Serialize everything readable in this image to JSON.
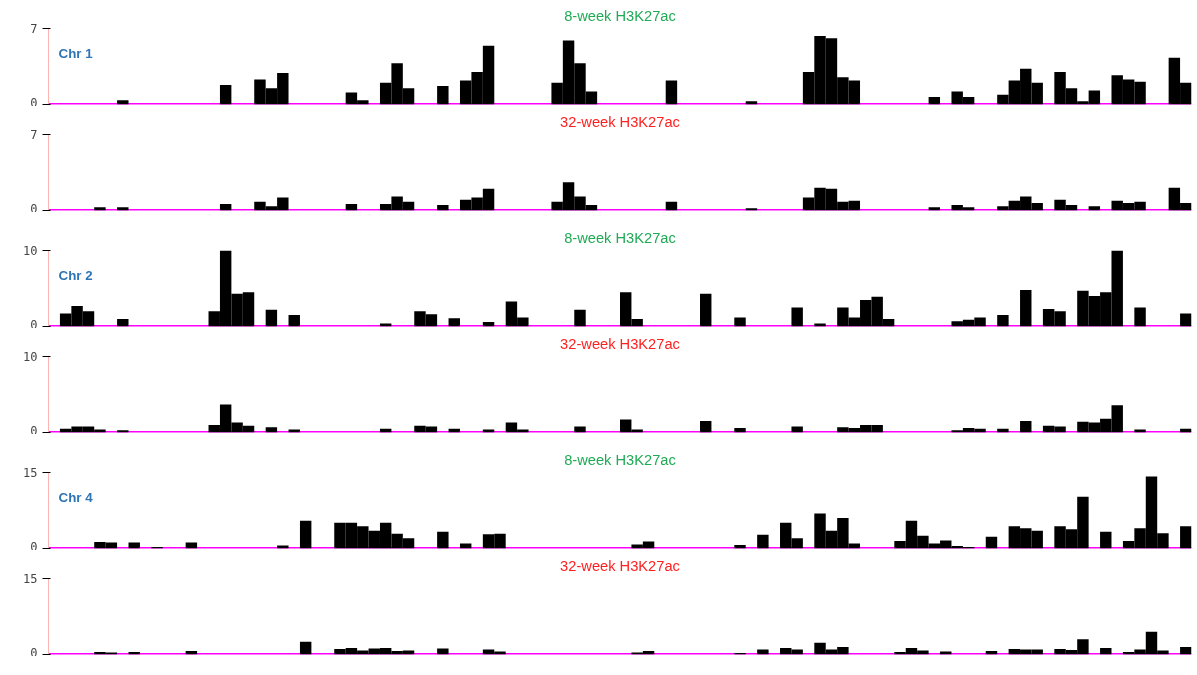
{
  "chart_data": [
    {
      "type": "bar",
      "title": "8-week H3K27ac",
      "annotations": [
        "Chr 1"
      ],
      "color": "#000000",
      "ylim": [
        0,
        7
      ],
      "yticks": [
        0,
        7
      ],
      "ref_lines": [
        {
          "axis": "y",
          "value": 0,
          "color": "#ff00ff"
        }
      ],
      "categories": [
        null,
        null,
        null,
        null,
        null,
        null,
        null,
        null,
        null,
        null,
        null,
        null,
        null,
        null,
        null,
        null,
        null,
        null,
        null,
        null,
        null,
        null,
        null,
        null,
        null,
        null,
        null,
        null,
        null,
        null,
        null,
        null,
        null,
        null,
        null,
        null,
        null,
        null,
        null,
        null,
        null,
        null,
        null,
        null,
        null,
        null,
        null,
        null,
        null,
        null,
        null,
        null,
        null,
        null,
        null,
        null,
        null,
        null,
        null,
        null,
        null,
        null,
        null,
        null,
        null,
        null,
        null,
        null,
        null,
        null,
        null,
        null,
        null,
        null,
        null,
        null,
        null,
        null,
        null,
        null,
        null,
        null,
        null,
        null,
        null,
        null,
        null,
        null,
        null,
        null,
        null,
        null,
        null,
        null,
        null,
        null,
        null,
        null,
        null,
        null
      ],
      "values": [
        0,
        0,
        0,
        0,
        0,
        0,
        0.4,
        0,
        0,
        0,
        0,
        0,
        0,
        0,
        0,
        1.8,
        0,
        0,
        2.3,
        1.5,
        2.9,
        0,
        0,
        0,
        0,
        0,
        1.1,
        0.4,
        0,
        2.0,
        3.8,
        1.5,
        0,
        0,
        1.7,
        0,
        2.2,
        3.0,
        5.4,
        0,
        0,
        0,
        0,
        0,
        2.0,
        5.9,
        3.8,
        1.2,
        0,
        0,
        0,
        0,
        0,
        0,
        2.2,
        0,
        0,
        0,
        0,
        0,
        0,
        0.3,
        0,
        0,
        0,
        0,
        3.0,
        6.3,
        6.1,
        2.5,
        2.2,
        0,
        0,
        0,
        0,
        0,
        0,
        0.7,
        0,
        1.2,
        0.7,
        0,
        0,
        0.9,
        2.2,
        3.3,
        2.0,
        0,
        3.0,
        1.5,
        0.3,
        1.3,
        0,
        2.7,
        2.3,
        2.1,
        0,
        0,
        4.3,
        2.0
      ]
    },
    {
      "type": "bar",
      "title": "32-week H3K27ac",
      "color": "#000000",
      "ylim": [
        0,
        7
      ],
      "yticks": [
        0,
        7
      ],
      "ref_lines": [
        {
          "axis": "y",
          "value": 0,
          "color": "#ff00ff"
        }
      ],
      "categories": [
        null,
        null,
        null,
        null,
        null,
        null,
        null,
        null,
        null,
        null,
        null,
        null,
        null,
        null,
        null,
        null,
        null,
        null,
        null,
        null,
        null,
        null,
        null,
        null,
        null,
        null,
        null,
        null,
        null,
        null,
        null,
        null,
        null,
        null,
        null,
        null,
        null,
        null,
        null,
        null,
        null,
        null,
        null,
        null,
        null,
        null,
        null,
        null,
        null,
        null,
        null,
        null,
        null,
        null,
        null,
        null,
        null,
        null,
        null,
        null,
        null,
        null,
        null,
        null,
        null,
        null,
        null,
        null,
        null,
        null,
        null,
        null,
        null,
        null,
        null,
        null,
        null,
        null,
        null,
        null,
        null,
        null,
        null,
        null,
        null,
        null,
        null,
        null,
        null,
        null,
        null,
        null,
        null,
        null,
        null,
        null,
        null,
        null,
        null,
        null
      ],
      "values": [
        0,
        0,
        0,
        0,
        0.3,
        0,
        0.3,
        0,
        0,
        0,
        0,
        0,
        0,
        0,
        0,
        0.6,
        0,
        0,
        0.8,
        0.4,
        1.2,
        0,
        0,
        0,
        0,
        0,
        0.6,
        0,
        0,
        0.6,
        1.3,
        0.8,
        0,
        0,
        0.5,
        0,
        1.0,
        1.2,
        2.0,
        0,
        0,
        0,
        0,
        0,
        0.8,
        2.6,
        1.3,
        0.5,
        0,
        0,
        0,
        0,
        0,
        0,
        0.8,
        0,
        0,
        0,
        0,
        0,
        0,
        0.2,
        0,
        0,
        0,
        0,
        1.2,
        2.1,
        2.0,
        0.8,
        0.9,
        0,
        0,
        0,
        0,
        0,
        0,
        0.3,
        0,
        0.5,
        0.3,
        0,
        0,
        0.4,
        0.9,
        1.3,
        0.7,
        0,
        1.0,
        0.5,
        0,
        0.4,
        0,
        0.9,
        0.7,
        0.8,
        0,
        0,
        2.1,
        0.7
      ]
    },
    {
      "type": "bar",
      "title": "8-week H3K27ac",
      "annotations": [
        "Chr 2"
      ],
      "color": "#000000",
      "ylim": [
        0,
        10
      ],
      "yticks": [
        0,
        10
      ],
      "ref_lines": [
        {
          "axis": "y",
          "value": 0,
          "color": "#ff00ff"
        }
      ],
      "categories": [
        null,
        null,
        null,
        null,
        null,
        null,
        null,
        null,
        null,
        null,
        null,
        null,
        null,
        null,
        null,
        null,
        null,
        null,
        null,
        null,
        null,
        null,
        null,
        null,
        null,
        null,
        null,
        null,
        null,
        null,
        null,
        null,
        null,
        null,
        null,
        null,
        null,
        null,
        null,
        null,
        null,
        null,
        null,
        null,
        null,
        null,
        null,
        null,
        null,
        null,
        null,
        null,
        null,
        null,
        null,
        null,
        null,
        null,
        null,
        null,
        null,
        null,
        null,
        null,
        null,
        null,
        null,
        null,
        null,
        null,
        null,
        null,
        null,
        null,
        null,
        null,
        null,
        null,
        null,
        null,
        null,
        null,
        null,
        null,
        null,
        null,
        null,
        null,
        null,
        null,
        null,
        null,
        null,
        null,
        null,
        null,
        null,
        null,
        null,
        null
      ],
      "values": [
        0,
        1.7,
        2.7,
        2.0,
        0,
        0,
        1.0,
        0,
        0,
        0,
        0,
        0,
        0,
        0,
        2.0,
        10.0,
        4.3,
        4.5,
        0,
        2.2,
        0,
        1.5,
        0,
        0,
        0,
        0,
        0,
        0,
        0,
        0.4,
        0,
        0,
        2.0,
        1.6,
        0,
        1.1,
        0,
        0,
        0.6,
        0,
        3.3,
        1.2,
        0,
        0,
        0,
        0,
        2.2,
        0,
        0,
        0,
        4.5,
        1.0,
        0,
        0,
        0,
        0,
        0,
        4.3,
        0,
        0,
        1.2,
        0,
        0,
        0,
        0,
        2.5,
        0,
        0.4,
        0,
        2.5,
        1.2,
        3.5,
        3.9,
        1.0,
        0,
        0,
        0,
        0,
        0,
        0.7,
        0.9,
        1.2,
        0,
        1.5,
        0,
        4.8,
        0,
        2.3,
        2.0,
        0,
        4.7,
        4.0,
        4.5,
        10.0,
        0,
        2.5,
        0,
        0,
        0,
        1.7
      ]
    },
    {
      "type": "bar",
      "title": "32-week H3K27ac",
      "color": "#000000",
      "ylim": [
        0,
        10
      ],
      "yticks": [
        0,
        10
      ],
      "ref_lines": [
        {
          "axis": "y",
          "value": 0,
          "color": "#ff00ff"
        }
      ],
      "categories": [
        null,
        null,
        null,
        null,
        null,
        null,
        null,
        null,
        null,
        null,
        null,
        null,
        null,
        null,
        null,
        null,
        null,
        null,
        null,
        null,
        null,
        null,
        null,
        null,
        null,
        null,
        null,
        null,
        null,
        null,
        null,
        null,
        null,
        null,
        null,
        null,
        null,
        null,
        null,
        null,
        null,
        null,
        null,
        null,
        null,
        null,
        null,
        null,
        null,
        null,
        null,
        null,
        null,
        null,
        null,
        null,
        null,
        null,
        null,
        null,
        null,
        null,
        null,
        null,
        null,
        null,
        null,
        null,
        null,
        null,
        null,
        null,
        null,
        null,
        null,
        null,
        null,
        null,
        null,
        null,
        null,
        null,
        null,
        null,
        null,
        null,
        null,
        null,
        null,
        null,
        null,
        null,
        null,
        null,
        null,
        null,
        null,
        null,
        null,
        null
      ],
      "values": [
        0,
        0.5,
        0.8,
        0.8,
        0.4,
        0,
        0.3,
        0,
        0,
        0,
        0,
        0,
        0,
        0,
        1.0,
        3.7,
        1.3,
        0.9,
        0,
        0.7,
        0,
        0.4,
        0,
        0,
        0,
        0,
        0,
        0,
        0,
        0.5,
        0,
        0,
        0.9,
        0.8,
        0,
        0.5,
        0,
        0,
        0.4,
        0,
        1.3,
        0.4,
        0,
        0,
        0,
        0,
        0.8,
        0,
        0,
        0,
        1.7,
        0.4,
        0,
        0,
        0,
        0,
        0,
        1.5,
        0,
        0,
        0.6,
        0,
        0,
        0,
        0,
        0.8,
        0,
        0,
        0,
        0.7,
        0.6,
        1.0,
        1.0,
        0,
        0,
        0,
        0,
        0,
        0,
        0.3,
        0.6,
        0.5,
        0,
        0.5,
        0,
        1.5,
        0,
        0.9,
        0.8,
        0,
        1.4,
        1.3,
        1.8,
        3.6,
        0,
        0.4,
        0,
        0,
        0,
        0.5
      ]
    },
    {
      "type": "bar",
      "title": "8-week H3K27ac",
      "annotations": [
        "Chr 4"
      ],
      "color": "#000000",
      "ylim": [
        0,
        15
      ],
      "yticks": [
        0,
        15
      ],
      "ref_lines": [
        {
          "axis": "y",
          "value": 0,
          "color": "#ff00ff"
        }
      ],
      "categories": [
        null,
        null,
        null,
        null,
        null,
        null,
        null,
        null,
        null,
        null,
        null,
        null,
        null,
        null,
        null,
        null,
        null,
        null,
        null,
        null,
        null,
        null,
        null,
        null,
        null,
        null,
        null,
        null,
        null,
        null,
        null,
        null,
        null,
        null,
        null,
        null,
        null,
        null,
        null,
        null,
        null,
        null,
        null,
        null,
        null,
        null,
        null,
        null,
        null,
        null,
        null,
        null,
        null,
        null,
        null,
        null,
        null,
        null,
        null,
        null,
        null,
        null,
        null,
        null,
        null,
        null,
        null,
        null,
        null,
        null,
        null,
        null,
        null,
        null,
        null,
        null,
        null,
        null,
        null,
        null,
        null,
        null,
        null,
        null,
        null,
        null,
        null,
        null,
        null,
        null,
        null,
        null,
        null,
        null,
        null,
        null,
        null,
        null,
        null,
        null
      ],
      "values": [
        0,
        0,
        0,
        0,
        1.3,
        1.2,
        0,
        1.2,
        0,
        0.3,
        0,
        0,
        1.2,
        0,
        0,
        0,
        0,
        0,
        0,
        0,
        0.6,
        0,
        5.5,
        0,
        0,
        5.1,
        5.1,
        4.4,
        3.5,
        5.1,
        2.9,
        2.0,
        0,
        0,
        3.3,
        0,
        1.0,
        0,
        2.8,
        2.9,
        0,
        0,
        0,
        0,
        0,
        0,
        0,
        0,
        0,
        0,
        0,
        0.8,
        1.4,
        0,
        0,
        0,
        0,
        0,
        0,
        0,
        0.7,
        0,
        2.7,
        0,
        5.1,
        2.0,
        0,
        6.9,
        3.5,
        6.0,
        1.0,
        0,
        0,
        0,
        1.5,
        5.5,
        2.5,
        1.0,
        1.6,
        0.5,
        0.3,
        0,
        2.3,
        0,
        4.4,
        4.0,
        3.5,
        0,
        4.4,
        3.8,
        10.2,
        0,
        3.3,
        0,
        1.5,
        4.0,
        14.2,
        3.0,
        0,
        4.4
      ]
    },
    {
      "type": "bar",
      "title": "32-week H3K27ac",
      "color": "#000000",
      "ylim": [
        0,
        15
      ],
      "yticks": [
        0,
        15
      ],
      "ref_lines": [
        {
          "axis": "y",
          "value": 0,
          "color": "#ff00ff"
        }
      ],
      "categories": [
        null,
        null,
        null,
        null,
        null,
        null,
        null,
        null,
        null,
        null,
        null,
        null,
        null,
        null,
        null,
        null,
        null,
        null,
        null,
        null,
        null,
        null,
        null,
        null,
        null,
        null,
        null,
        null,
        null,
        null,
        null,
        null,
        null,
        null,
        null,
        null,
        null,
        null,
        null,
        null,
        null,
        null,
        null,
        null,
        null,
        null,
        null,
        null,
        null,
        null,
        null,
        null,
        null,
        null,
        null,
        null,
        null,
        null,
        null,
        null,
        null,
        null,
        null,
        null,
        null,
        null,
        null,
        null,
        null,
        null,
        null,
        null,
        null,
        null,
        null,
        null,
        null,
        null,
        null,
        null,
        null,
        null,
        null,
        null,
        null,
        null,
        null,
        null,
        null,
        null,
        null,
        null,
        null,
        null,
        null,
        null,
        null,
        null,
        null,
        null
      ],
      "values": [
        0,
        0,
        0,
        0,
        0.5,
        0.4,
        0,
        0.5,
        0,
        0,
        0,
        0,
        0.7,
        0,
        0,
        0,
        0,
        0,
        0,
        0,
        0,
        0,
        2.5,
        0,
        0,
        1.1,
        1.3,
        0.8,
        1.2,
        1.3,
        0.7,
        0.8,
        0,
        0,
        1.2,
        0,
        0,
        0,
        1.0,
        0.6,
        0,
        0,
        0,
        0,
        0,
        0,
        0,
        0,
        0,
        0,
        0,
        0.4,
        0.7,
        0,
        0,
        0,
        0,
        0,
        0,
        0,
        0.3,
        0,
        1.0,
        0,
        1.3,
        1.0,
        0,
        2.3,
        1.0,
        1.5,
        0,
        0,
        0,
        0,
        0.5,
        1.3,
        0.8,
        0,
        0.6,
        0,
        0,
        0,
        0.7,
        0,
        1.1,
        1.0,
        1.0,
        0,
        1.1,
        0.9,
        3.0,
        0,
        1.3,
        0,
        0.5,
        1.0,
        4.5,
        0.8,
        0,
        1.5
      ]
    }
  ]
}
